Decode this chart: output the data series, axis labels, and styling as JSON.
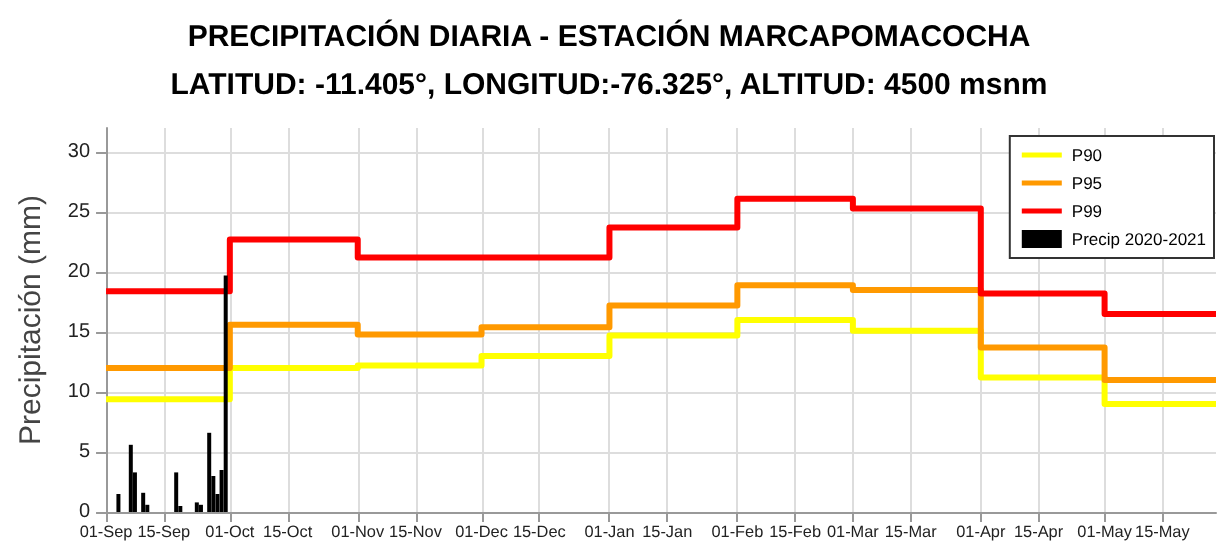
{
  "chart_data": {
    "type": "step",
    "title": "PRECIPITACIÓN DIARIA - ESTACIÓN MARCAPOMACOCHA",
    "subtitle": "LATITUD: -11.405°, LONGITUD:-76.325°, ALTITUD: 4500 msnm",
    "ylabel": "Precipitación (mm)",
    "xlim": [
      "2020-09-01",
      "2021-05-28"
    ],
    "ylim": [
      0,
      32
    ],
    "yticks": [
      0,
      5,
      10,
      15,
      20,
      25,
      30
    ],
    "xticks": [
      {
        "value": "2020-09-01",
        "label": "01-Sep"
      },
      {
        "value": "2020-09-15",
        "label": "15-Sep"
      },
      {
        "value": "2020-10-01",
        "label": "01-Oct"
      },
      {
        "value": "2020-10-15",
        "label": "15-Oct"
      },
      {
        "value": "2020-11-01",
        "label": "01-Nov"
      },
      {
        "value": "2020-11-15",
        "label": "15-Nov"
      },
      {
        "value": "2020-12-01",
        "label": "01-Dec"
      },
      {
        "value": "2020-12-15",
        "label": "15-Dec"
      },
      {
        "value": "2021-01-01",
        "label": "01-Jan"
      },
      {
        "value": "2021-01-15",
        "label": "15-Jan"
      },
      {
        "value": "2021-02-01",
        "label": "01-Feb"
      },
      {
        "value": "2021-02-15",
        "label": "15-Feb"
      },
      {
        "value": "2021-03-01",
        "label": "01-Mar"
      },
      {
        "value": "2021-03-15",
        "label": "15-Mar"
      },
      {
        "value": "2021-04-01",
        "label": "01-Apr"
      },
      {
        "value": "2021-04-15",
        "label": "15-Apr"
      },
      {
        "value": "2021-05-01",
        "label": "01-May"
      },
      {
        "value": "2021-05-15",
        "label": "15-May"
      }
    ],
    "x": [
      "2020-09-01",
      "2020-10-01",
      "2020-11-01",
      "2020-12-01",
      "2021-01-01",
      "2021-02-01",
      "2021-03-01",
      "2021-04-01",
      "2021-05-01",
      "2021-05-28"
    ],
    "grid": true,
    "legend": "top right",
    "line_style": "solid",
    "marker": "none",
    "series": [
      {
        "name": "P90",
        "color": "#ffff00",
        "values": [
          9.4,
          12.0,
          12.2,
          13.0,
          14.7,
          16.0,
          15.1,
          11.2,
          9.0,
          9.0
        ]
      },
      {
        "name": "P95",
        "color": "#ff9900",
        "values": [
          12.0,
          15.6,
          14.8,
          15.4,
          17.2,
          18.9,
          18.5,
          13.7,
          11.0,
          11.0
        ]
      },
      {
        "name": "P99",
        "color": "#ff0000",
        "values": [
          18.4,
          22.7,
          21.2,
          21.2,
          23.7,
          26.1,
          25.3,
          18.2,
          16.5,
          16.5
        ]
      },
      {
        "name": "Precip 2020-2021",
        "type": "bar",
        "color": "#000000",
        "x": [
          "2020-09-04",
          "2020-09-07",
          "2020-09-08",
          "2020-09-10",
          "2020-09-11",
          "2020-09-18",
          "2020-09-19",
          "2020-09-23",
          "2020-09-24",
          "2020-09-26",
          "2020-09-27",
          "2020-09-28",
          "2020-09-29",
          "2020-09-30"
        ],
        "values": [
          1.5,
          5.6,
          3.3,
          1.6,
          0.6,
          3.3,
          0.5,
          0.8,
          0.6,
          6.6,
          3.0,
          1.5,
          3.5,
          19.7
        ]
      }
    ]
  }
}
